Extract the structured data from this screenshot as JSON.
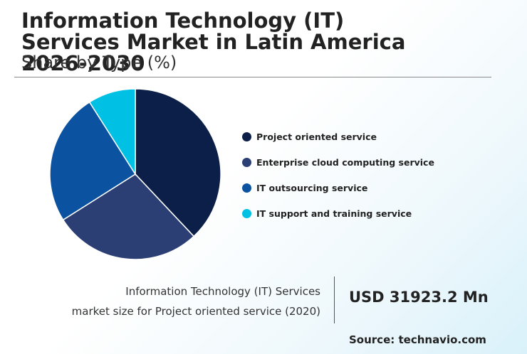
{
  "header": {
    "title": "Information Technology (IT) Services Market in Latin America 2026-2030",
    "subtitle": "Share by Type (%)"
  },
  "chart_data": {
    "type": "pie",
    "title": "Information Technology (IT) Services Market in Latin America 2026-2030",
    "subtitle": "Share by Type (%)",
    "categories": [
      "Project oriented service",
      "Enterprise cloud computing service",
      "IT outsourcing service",
      "IT support and training service"
    ],
    "values": [
      38,
      28,
      25,
      9
    ],
    "colors": [
      "#0b1f48",
      "#2b3f74",
      "#0b53a0",
      "#00c1e4"
    ],
    "legend_position": "right"
  },
  "stat": {
    "line1": "Information Technology (IT) Services",
    "line2": "market size for Project oriented service (2020)",
    "value": "USD 31923.2 Mn"
  },
  "source": "Source: technavio.com"
}
